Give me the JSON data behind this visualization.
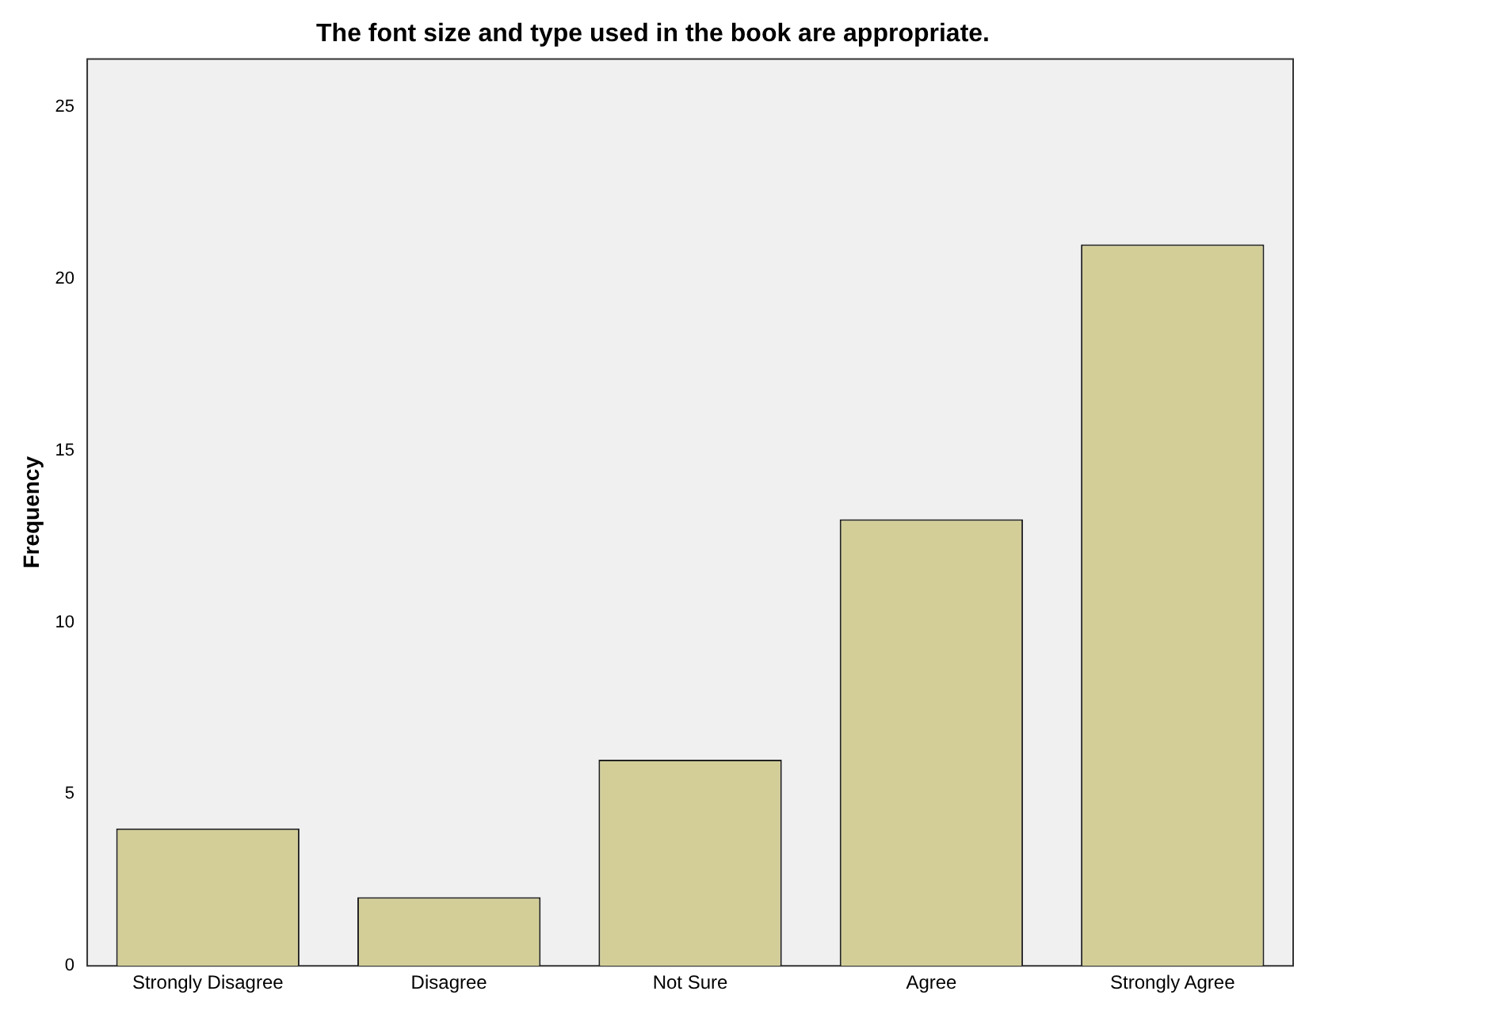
{
  "chart_data": {
    "type": "bar",
    "title": "The font size and type used in the book are appropriate.",
    "ylabel": "Frequency",
    "categories": [
      "Strongly Disagree",
      "Disagree",
      "Not Sure",
      "Agree",
      "Strongly Agree"
    ],
    "values": [
      4,
      2,
      6,
      13,
      21
    ],
    "color": "#d3ce98",
    "ylim": [
      0,
      26.4
    ],
    "yticks": [
      0,
      5,
      10,
      15,
      20,
      25
    ],
    "grid": false,
    "legend": false
  }
}
